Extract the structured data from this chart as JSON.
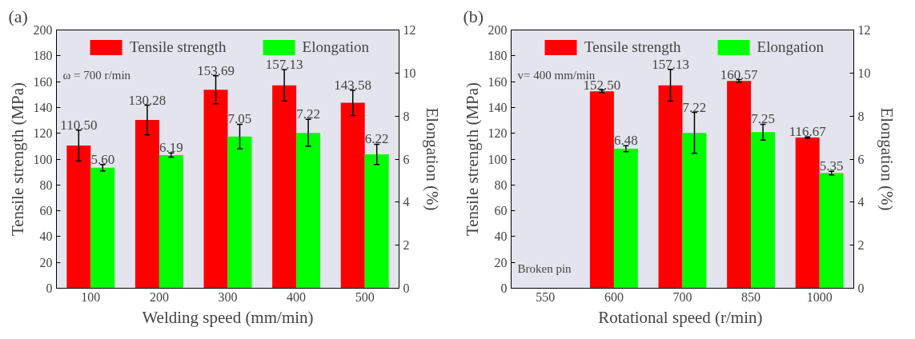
{
  "chart_data": [
    {
      "type": "bar",
      "title": "(a)",
      "xlabel": "Welding speed (mm/min)",
      "ylabel": "Tensile strength (MPa)",
      "y2label": "Elongation (%)",
      "categories": [
        "100",
        "200",
        "300",
        "400",
        "500"
      ],
      "series": [
        {
          "name": "Tensile strength",
          "color": "#ff0000",
          "values": [
            110.5,
            130.28,
            153.69,
            157.13,
            143.58
          ],
          "errors": [
            12,
            11.5,
            10.8,
            12.2,
            9.8
          ],
          "value_labels": [
            "110.50",
            "130.28",
            "153.69",
            "157.13",
            "143.58"
          ]
        },
        {
          "name": "Elongation",
          "color": "#00ff00",
          "axis": "y2",
          "values": [
            5.6,
            6.19,
            7.05,
            7.22,
            6.22
          ],
          "errors": [
            0.15,
            0.1,
            0.57,
            0.63,
            0.47
          ],
          "value_labels": [
            "5.60",
            "6.19",
            "7.05",
            "7.22",
            "6.22"
          ]
        }
      ],
      "ylim": [
        0,
        200
      ],
      "yticks": [
        0,
        20,
        40,
        60,
        80,
        100,
        120,
        140,
        160,
        180,
        200
      ],
      "y2lim": [
        0,
        12
      ],
      "y2ticks": [
        0,
        2,
        4,
        6,
        8,
        10,
        12
      ],
      "annotations": [
        "ω = 700 r/min"
      ],
      "legend": "top",
      "grid": false
    },
    {
      "type": "bar",
      "title": "(b)",
      "xlabel": "Rotational  speed (r/min)",
      "ylabel": "Tensile strength (MPa)",
      "y2label": "Elongation (%)",
      "categories": [
        "550",
        "600",
        "700",
        "850",
        "1000"
      ],
      "series": [
        {
          "name": "Tensile strength",
          "color": "#ff0000",
          "values": [
            null,
            152.5,
            157.13,
            160.57,
            116.67
          ],
          "errors": [
            null,
            1,
            12.3,
            1,
            0.5
          ],
          "value_labels": [
            null,
            "152.50",
            "157.13",
            "160.57",
            "116.67"
          ]
        },
        {
          "name": "Elongation",
          "color": "#00ff00",
          "axis": "y2",
          "values": [
            null,
            6.48,
            7.22,
            7.25,
            5.35
          ],
          "errors": [
            null,
            0.14,
            0.95,
            0.37,
            0.08
          ],
          "value_labels": [
            null,
            "6.48",
            "7.22",
            "7.25",
            "5.35"
          ]
        }
      ],
      "ylim": [
        0,
        200
      ],
      "yticks": [
        0,
        20,
        40,
        60,
        80,
        100,
        120,
        140,
        160,
        180,
        200
      ],
      "y2lim": [
        0,
        12
      ],
      "y2ticks": [
        0,
        2,
        4,
        6,
        8,
        10,
        12
      ],
      "annotations": [
        "v= 400 mm/min",
        "Broken pin"
      ],
      "legend": "top",
      "grid": false
    }
  ]
}
